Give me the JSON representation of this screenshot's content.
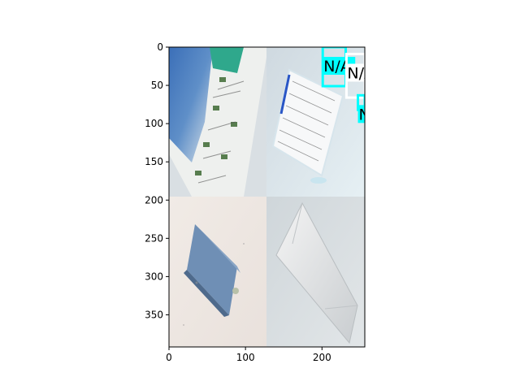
{
  "chart_data": {
    "type": "image",
    "title": "",
    "xlabel": "",
    "ylabel": "",
    "xlim": [
      0,
      256
    ],
    "ylim": [
      392,
      0
    ],
    "xticks": [
      0,
      100,
      200
    ],
    "yticks": [
      0,
      50,
      100,
      150,
      200,
      250,
      300,
      350
    ],
    "grid": false,
    "image_content": {
      "layout": "2x2 photo mosaic",
      "tiles": [
        {
          "position": "top-left",
          "x": [
            0,
            128
          ],
          "y": [
            0,
            196
          ],
          "subject": "printed coupon flyer with blue imagery"
        },
        {
          "position": "top-right",
          "x": [
            128,
            256
          ],
          "y": [
            0,
            196
          ],
          "subject": "handwritten note on white paper"
        },
        {
          "position": "bottom-left",
          "x": [
            0,
            128
          ],
          "y": [
            196,
            392
          ],
          "subject": "blue rectangular object on light surface"
        },
        {
          "position": "bottom-right",
          "x": [
            128,
            256
          ],
          "y": [
            196,
            392
          ],
          "subject": "white envelope or paper bag"
        }
      ]
    },
    "annotations": [
      {
        "label": "N/A",
        "box_color": "#00ffff",
        "x": [
          201,
          231
        ],
        "y": [
          0,
          51
        ]
      },
      {
        "label": "N/A",
        "box_color": "#ffffff",
        "x": [
          232,
          256
        ],
        "y": [
          9,
          66
        ]
      },
      {
        "label": "N",
        "box_color": "#00ffff",
        "x": [
          247,
          256
        ],
        "y": [
          63,
          82
        ]
      }
    ]
  }
}
